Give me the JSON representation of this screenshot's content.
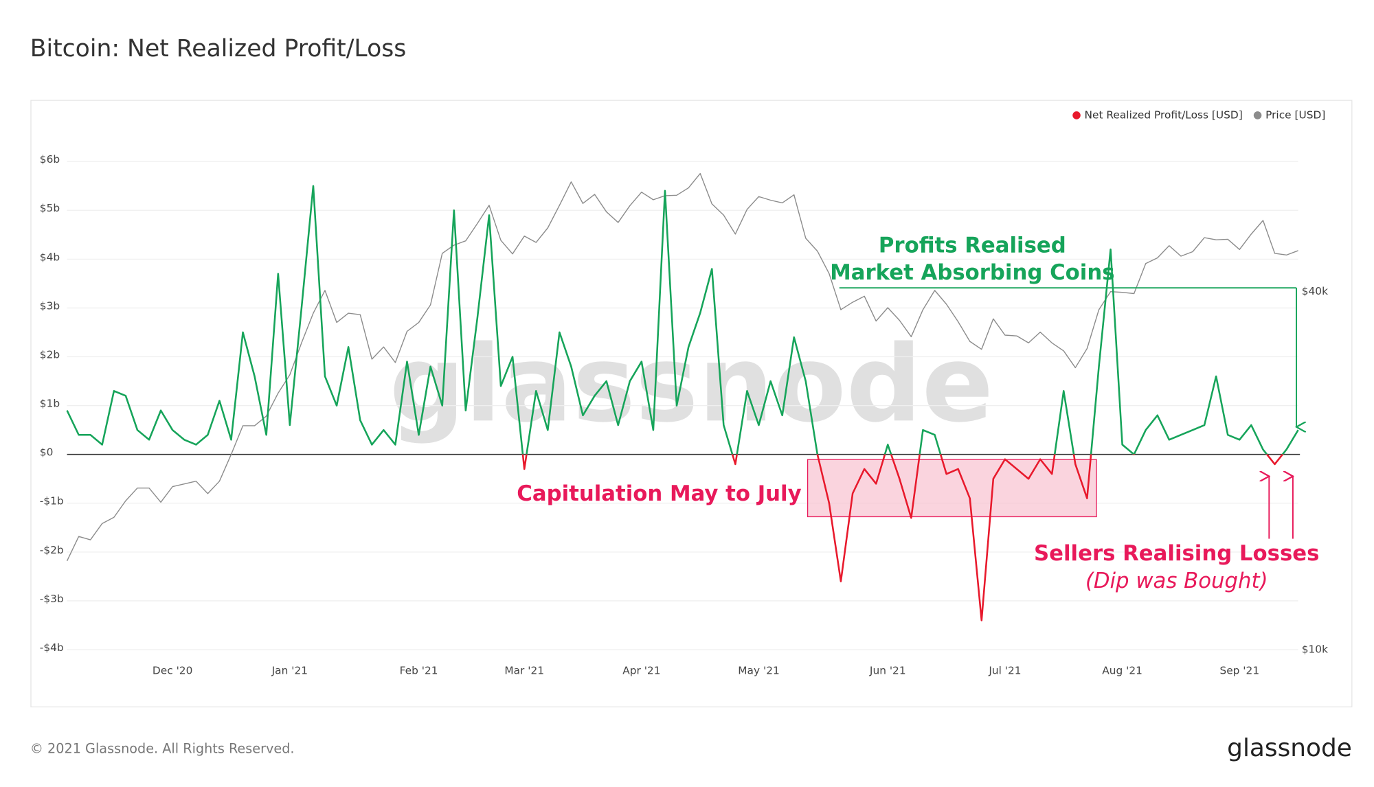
{
  "chart_data": {
    "type": "line",
    "title": "Bitcoin: Net Realized Profit/Loss",
    "categories": [
      null,
      null,
      null,
      null,
      null,
      null,
      null,
      null,
      null,
      "Dec '20",
      null,
      null,
      null,
      null,
      null,
      null,
      null,
      null,
      null,
      "Jan '21",
      null,
      null,
      null,
      null,
      null,
      null,
      null,
      null,
      null,
      null,
      "Feb '21",
      null,
      null,
      null,
      null,
      null,
      null,
      null,
      null,
      "Mar '21",
      null,
      null,
      null,
      null,
      null,
      null,
      null,
      null,
      null,
      "Apr '21",
      null,
      null,
      null,
      null,
      null,
      null,
      null,
      null,
      null,
      "May '21",
      null,
      null,
      null,
      null,
      null,
      null,
      null,
      null,
      null,
      null,
      "Jun '21",
      null,
      null,
      null,
      null,
      null,
      null,
      null,
      null,
      null,
      "Jul '21",
      null,
      null,
      null,
      null,
      null,
      null,
      null,
      null,
      null,
      "Aug '21",
      null,
      null,
      null,
      null,
      null,
      null,
      null,
      null,
      null,
      "Sep '21",
      null,
      null,
      null,
      null,
      null
    ],
    "series": [
      {
        "name": "Net Realized Profit/Loss [USD]",
        "color": "#e8192c",
        "positive_color": "#16a45a",
        "values": [
          0.9,
          0.4,
          0.4,
          0.2,
          1.3,
          1.2,
          0.5,
          0.3,
          0.9,
          0.5,
          0.3,
          0.2,
          0.4,
          1.1,
          0.3,
          2.5,
          1.6,
          0.4,
          3.7,
          0.6,
          3.0,
          5.5,
          1.6,
          1.0,
          2.2,
          0.7,
          0.2,
          0.5,
          0.2,
          1.9,
          0.4,
          1.8,
          1.0,
          5.0,
          0.9,
          2.8,
          4.9,
          1.4,
          2.0,
          -0.3,
          1.3,
          0.5,
          2.5,
          1.8,
          0.8,
          1.2,
          1.5,
          0.6,
          1.5,
          1.9,
          0.5,
          5.4,
          1.0,
          2.2,
          2.9,
          3.8,
          0.6,
          -0.2,
          1.3,
          0.6,
          1.5,
          0.8,
          2.4,
          1.5,
          0.0,
          -1.0,
          -2.6,
          -0.8,
          -0.3,
          -0.6,
          0.2,
          -0.5,
          -1.3,
          0.5,
          0.4,
          -0.4,
          -0.3,
          -0.9,
          -3.4,
          -0.5,
          -0.1,
          -0.3,
          -0.5,
          -0.1,
          -0.4,
          1.3,
          -0.2,
          -0.9,
          1.8,
          4.2,
          0.2,
          0.0,
          0.5,
          0.8,
          0.3,
          0.4,
          0.5,
          0.6,
          1.6,
          0.4,
          0.3,
          0.6,
          0.1,
          -0.2,
          0.1,
          0.5
        ]
      },
      {
        "name": "Price [USD]",
        "color": "#8c8c8c",
        "axis": "y2",
        "values": [
          14100,
          15500,
          15300,
          16300,
          16700,
          17800,
          18700,
          18700,
          17700,
          18800,
          19000,
          19200,
          18300,
          19200,
          21300,
          23800,
          23800,
          24700,
          27000,
          29000,
          32800,
          36800,
          40200,
          35500,
          36800,
          36600,
          30800,
          32300,
          30400,
          34300,
          35500,
          38000,
          46400,
          47900,
          48700,
          52100,
          55900,
          48800,
          46300,
          49600,
          48400,
          51200,
          55900,
          61200,
          56300,
          58300,
          54500,
          52300,
          55800,
          58800,
          57100,
          58000,
          58100,
          59800,
          63200,
          56200,
          53800,
          50000,
          55000,
          57800,
          57000,
          56400,
          58200,
          49200,
          46800,
          42900,
          37300,
          38400,
          39300,
          35700,
          37600,
          35800,
          33600,
          37300,
          40200,
          38100,
          35600,
          33000,
          32000,
          36000,
          33800,
          33700,
          32800,
          34200,
          32800,
          31800,
          29800,
          32100,
          37300,
          40000,
          39900,
          39700,
          44600,
          45600,
          47800,
          45900,
          46700,
          49300,
          48900,
          49000,
          47100,
          50000,
          52700,
          46400,
          46100,
          46900
        ]
      }
    ],
    "ylim": [
      -4,
      7
    ],
    "yticks": [
      {
        "value": -4,
        "label": "-$4b"
      },
      {
        "value": -3,
        "label": "-$3b"
      },
      {
        "value": -2,
        "label": "-$2b"
      },
      {
        "value": -1,
        "label": "-$1b"
      },
      {
        "value": 0,
        "label": "$0"
      },
      {
        "value": 1,
        "label": "$1b"
      },
      {
        "value": 2,
        "label": "$2b"
      },
      {
        "value": 3,
        "label": "$3b"
      },
      {
        "value": 4,
        "label": "$4b"
      },
      {
        "value": 5,
        "label": "$5b"
      },
      {
        "value": 6,
        "label": "$6b"
      }
    ],
    "y2lim": [
      10000,
      80000
    ],
    "y2ticks": [
      {
        "value": 10000,
        "label": "$10k"
      },
      {
        "value": 40000,
        "label": "$40k"
      }
    ],
    "y2log": true,
    "grid": true,
    "legend": "top-right",
    "watermark": "glassnode",
    "annotations": {
      "profits": [
        "Profits Realised",
        "Market Absorbing Coins"
      ],
      "capitulation": "Capitulation May to July",
      "sellers": "Sellers Realising Losses",
      "dip": "(Dip was Bought)"
    }
  },
  "footer": {
    "copyright": "© 2021 Glassnode. All Rights Reserved.",
    "logo": "glassnode"
  }
}
